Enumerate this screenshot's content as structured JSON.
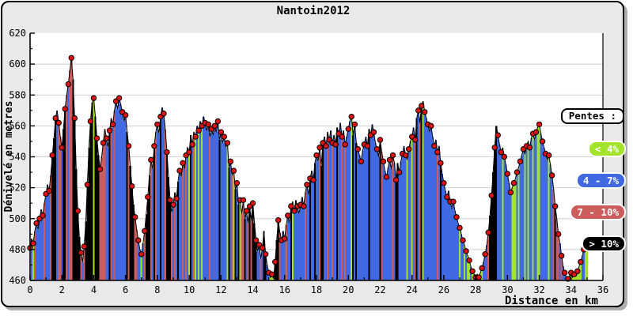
{
  "chart": {
    "title": "Nantoin2012",
    "xlabel": "Distance en km",
    "ylabel": "Dénivelé en metres"
  },
  "chart_data": {
    "type": "bar",
    "title": "Nantoin2012",
    "xlabel": "Distance en km",
    "ylabel": "Dénivelé en metres",
    "xlim": [
      0,
      36
    ],
    "ylim": [
      460,
      620
    ],
    "x_ticks": [
      0,
      2,
      4,
      6,
      8,
      10,
      12,
      14,
      16,
      18,
      20,
      22,
      24,
      26,
      28,
      30,
      32,
      34,
      36
    ],
    "x_minor_step": 1,
    "y_ticks": [
      460,
      480,
      500,
      520,
      540,
      560,
      580,
      600,
      620
    ],
    "y_minor_step": 10,
    "grid": "horizontal-major",
    "grid_color": "#cfcfcf",
    "background_color": "#e9e9e9",
    "plot_color": "#ffffff",
    "marker_color": "#dd1111",
    "marker_every": 2,
    "line_color": "#000000",
    "x_start": 0,
    "x_step": 0.1,
    "legend": {
      "title": "Pentes :",
      "position": "right",
      "items": [
        {
          "label": "< 4%",
          "max_abs_slope_percent": 4,
          "color": "#a3e32b"
        },
        {
          "label": "4 - 7%",
          "max_abs_slope_percent": 7,
          "color": "#4169e1"
        },
        {
          "label": "7 - 10%",
          "max_abs_slope_percent": 10,
          "color": "#cd5c5c"
        },
        {
          "label": "> 10%",
          "max_abs_slope_percent": 999,
          "color": "#000000"
        }
      ]
    },
    "elevations": [
      481,
      487,
      484,
      492,
      497,
      493,
      500,
      506,
      502,
      510,
      516,
      522,
      518,
      528,
      541,
      552,
      565,
      570,
      562,
      553,
      546,
      558,
      571,
      580,
      587,
      596,
      604,
      590,
      565,
      532,
      505,
      488,
      478,
      472,
      482,
      498,
      522,
      546,
      563,
      575,
      578,
      566,
      552,
      541,
      532,
      540,
      549,
      558,
      552,
      546,
      557,
      565,
      561,
      570,
      576,
      571,
      578,
      574,
      569,
      563,
      567,
      556,
      547,
      534,
      521,
      509,
      501,
      493,
      486,
      480,
      477,
      484,
      492,
      503,
      514,
      528,
      538,
      532,
      547,
      556,
      561,
      555,
      566,
      572,
      568,
      558,
      543,
      527,
      512,
      504,
      509,
      517,
      513,
      524,
      531,
      527,
      536,
      532,
      541,
      546,
      543,
      554,
      548,
      556,
      553,
      560,
      557,
      563,
      560,
      566,
      562,
      557,
      561,
      553,
      558,
      554,
      560,
      556,
      563,
      551,
      556,
      549,
      553,
      546,
      549,
      533,
      537,
      528,
      531,
      519,
      523,
      509,
      512,
      503,
      512,
      500,
      505,
      497,
      508,
      499,
      510,
      497,
      486,
      479,
      483,
      474,
      481,
      492,
      477,
      470,
      465,
      462,
      464,
      461,
      472,
      486,
      499,
      491,
      486,
      492,
      487,
      496,
      502,
      497,
      508,
      511,
      505,
      512,
      508,
      503,
      509,
      514,
      508,
      517,
      522,
      515,
      526,
      531,
      525,
      536,
      541,
      537,
      546,
      534,
      549,
      553,
      547,
      556,
      551,
      557,
      549,
      554,
      548,
      559,
      555,
      562,
      553,
      557,
      548,
      553,
      558,
      563,
      566,
      554,
      561,
      549,
      545,
      541,
      537,
      544,
      548,
      553,
      547,
      558,
      554,
      561,
      556,
      549,
      545,
      540,
      551,
      543,
      537,
      531,
      527,
      533,
      538,
      532,
      541,
      536,
      525,
      536,
      530,
      537,
      542,
      547,
      541,
      538,
      545,
      550,
      553,
      559,
      551,
      565,
      570,
      562,
      573,
      576,
      569,
      565,
      561,
      556,
      560,
      553,
      547,
      551,
      543,
      547,
      536,
      529,
      523,
      518,
      514,
      518,
      511,
      507,
      511,
      505,
      501,
      497,
      494,
      490,
      486,
      483,
      479,
      476,
      473,
      469,
      466,
      464,
      462,
      464,
      462,
      465,
      468,
      472,
      477,
      483,
      491,
      502,
      515,
      530,
      546,
      560,
      554,
      548,
      543,
      546,
      540,
      535,
      529,
      523,
      517,
      520,
      523,
      526,
      530,
      533,
      537,
      541,
      545,
      542,
      547,
      550,
      546,
      552,
      555,
      551,
      556,
      559,
      561,
      555,
      550,
      546,
      542,
      538,
      541,
      535,
      528,
      519,
      508,
      500,
      490,
      484,
      476,
      469,
      465,
      462,
      461,
      463,
      465,
      462,
      464,
      463,
      466,
      469,
      472,
      476,
      480,
      482,
      483
    ]
  }
}
